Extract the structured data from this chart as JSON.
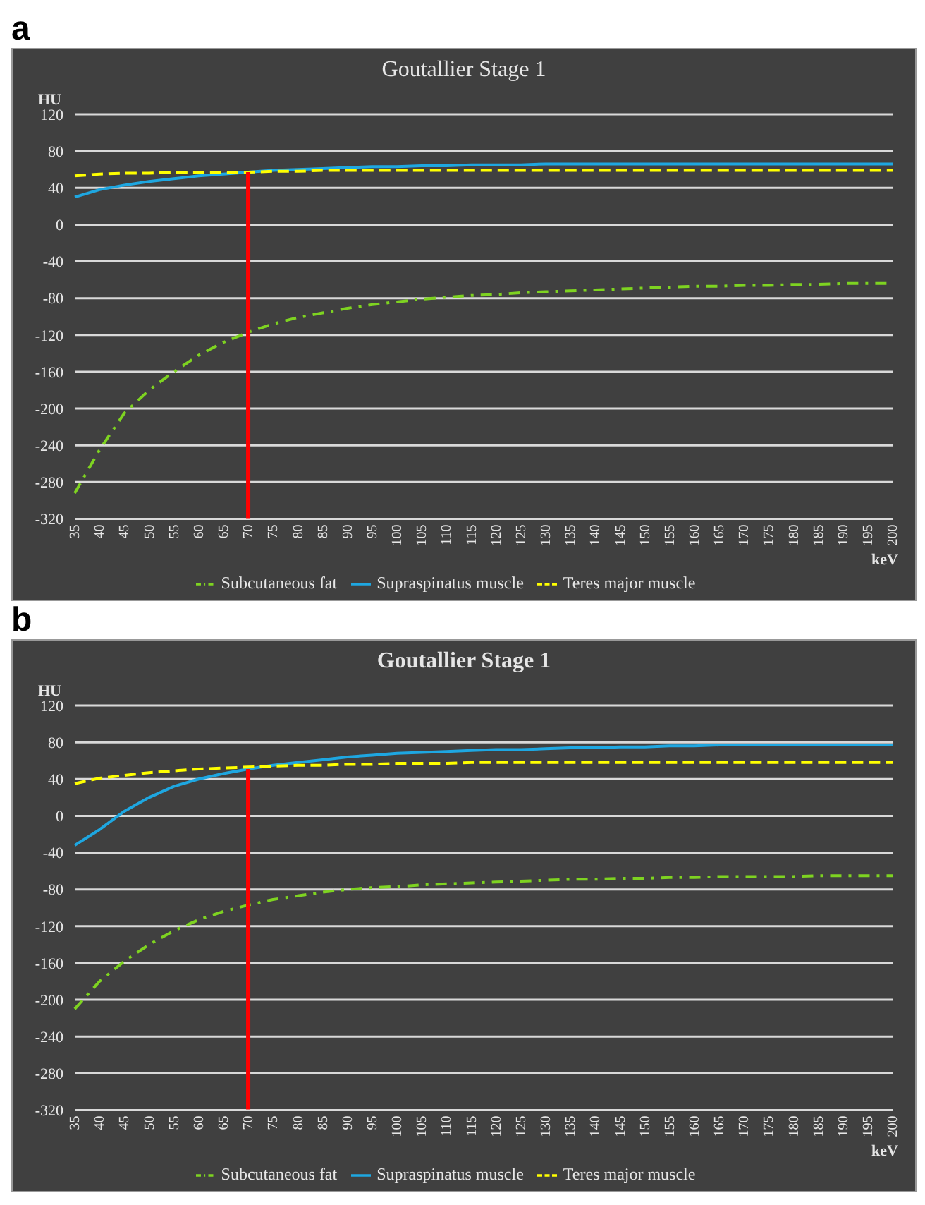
{
  "chart_data": [
    {
      "type": "line",
      "title": "Goutallier Stage 1",
      "annotations": [
        "a"
      ],
      "ylabel": "HU",
      "xlabel": "keV",
      "categories": [
        "35",
        "40",
        "45",
        "50",
        "55",
        "60",
        "65",
        "70",
        "75",
        "80",
        "85",
        "90",
        "95",
        "100",
        "105",
        "110",
        "115",
        "120",
        "125",
        "130",
        "135",
        "140",
        "145",
        "150",
        "155",
        "160",
        "165",
        "170",
        "175",
        "180",
        "185",
        "190",
        "195",
        "200"
      ],
      "series": [
        {
          "name": "Supraspinatus muscle",
          "color": "#1ea7e1",
          "line_style": "solid",
          "values": [
            30,
            38,
            43,
            47,
            50,
            53,
            55,
            57,
            59,
            60,
            61,
            62,
            63,
            63,
            64,
            64,
            65,
            65,
            65,
            66,
            66,
            66,
            66,
            66,
            66,
            66,
            66,
            66,
            66,
            66,
            66,
            66,
            66,
            66
          ]
        },
        {
          "name": "Teres major muscle",
          "color": "#ffff00",
          "line_style": "dashed",
          "values": [
            53,
            55,
            56,
            56,
            57,
            57,
            57,
            57,
            58,
            58,
            59,
            59,
            59,
            59,
            59,
            59,
            59,
            59,
            59,
            59,
            59,
            59,
            59,
            59,
            59,
            59,
            59,
            59,
            59,
            59,
            59,
            59,
            59,
            59
          ]
        },
        {
          "name": "Subcutaneous fat",
          "color": "#7ed321",
          "line_style": "dotted",
          "values": [
            -292,
            -245,
            -205,
            -180,
            -160,
            -142,
            -128,
            -117,
            -108,
            -101,
            -96,
            -91,
            -87,
            -84,
            -81,
            -79,
            -77,
            -76,
            -74,
            -73,
            -72,
            -71,
            -70,
            -69,
            -68,
            -67,
            -67,
            -66,
            -66,
            -65,
            -65,
            -64,
            -64,
            -64
          ]
        }
      ],
      "ylim": [
        -320,
        120
      ],
      "yticks": [
        -320,
        -280,
        -240,
        -200,
        -160,
        -120,
        -80,
        -40,
        0,
        40,
        80,
        120
      ],
      "grid": "y",
      "legend": "bottom",
      "marker": "none",
      "ref_lines": [
        {
          "axis": "x",
          "value": "70",
          "color": "#ff0000"
        }
      ]
    },
    {
      "type": "line",
      "title": "Goutallier Stage 1",
      "annotations": [
        "b"
      ],
      "ylabel": "HU",
      "xlabel": "keV",
      "categories": [
        "35",
        "40",
        "45",
        "50",
        "55",
        "60",
        "65",
        "70",
        "75",
        "80",
        "85",
        "90",
        "95",
        "100",
        "105",
        "110",
        "115",
        "120",
        "125",
        "130",
        "135",
        "140",
        "145",
        "150",
        "155",
        "160",
        "165",
        "170",
        "175",
        "180",
        "185",
        "190",
        "195",
        "200"
      ],
      "series": [
        {
          "name": "Supraspinatus muscle",
          "color": "#1ea7e1",
          "line_style": "solid",
          "values": [
            -32,
            -15,
            5,
            20,
            32,
            40,
            46,
            51,
            55,
            58,
            61,
            64,
            66,
            68,
            69,
            70,
            71,
            72,
            72,
            73,
            74,
            74,
            75,
            75,
            76,
            76,
            77,
            77,
            77,
            77,
            77,
            77,
            77,
            77
          ]
        },
        {
          "name": "Teres major muscle",
          "color": "#ffff00",
          "line_style": "dashed",
          "values": [
            35,
            41,
            44,
            47,
            49,
            51,
            52,
            53,
            54,
            55,
            55,
            56,
            56,
            57,
            57,
            57,
            58,
            58,
            58,
            58,
            58,
            58,
            58,
            58,
            58,
            58,
            58,
            58,
            58,
            58,
            58,
            58,
            58,
            58
          ]
        },
        {
          "name": "Subcutaneous fat",
          "color": "#7ed321",
          "line_style": "dotted",
          "values": [
            -210,
            -180,
            -158,
            -140,
            -125,
            -113,
            -104,
            -97,
            -91,
            -87,
            -83,
            -80,
            -78,
            -77,
            -75,
            -74,
            -73,
            -72,
            -71,
            -70,
            -69,
            -69,
            -68,
            -68,
            -67,
            -67,
            -66,
            -66,
            -66,
            -66,
            -65,
            -65,
            -65,
            -65
          ]
        }
      ],
      "ylim": [
        -320,
        120
      ],
      "yticks": [
        -320,
        -280,
        -240,
        -200,
        -160,
        -120,
        -80,
        -40,
        0,
        40,
        80,
        120
      ],
      "grid": "y",
      "legend": "bottom",
      "marker": "none",
      "ref_lines": [
        {
          "axis": "x",
          "value": "70",
          "color": "#ff0000"
        }
      ]
    }
  ]
}
